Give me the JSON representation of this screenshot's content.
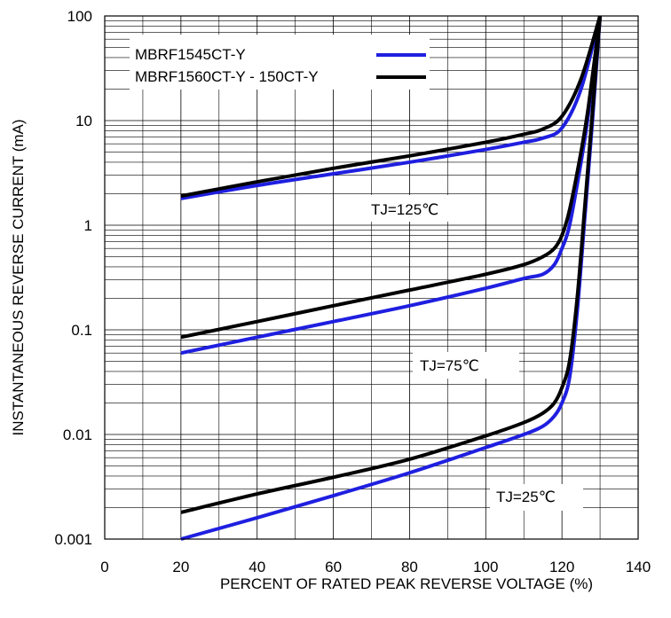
{
  "chart_data": {
    "type": "line",
    "title": "",
    "xlabel": "PERCENT OF RATED PEAK REVERSE VOLTAGE (%)",
    "ylabel": "INSTANTANEOUS REVERSE CURRENT (mA)",
    "xlim": [
      0,
      140
    ],
    "ylim": [
      0.001,
      100
    ],
    "yscale": "log",
    "grid": true,
    "x_ticks": [
      "0",
      "20",
      "40",
      "60",
      "80",
      "100",
      "120",
      "140"
    ],
    "y_ticks": [
      "0.001",
      "0.01",
      "0.1",
      "1",
      "10",
      "100"
    ],
    "legend_position": "top-left",
    "legend": [
      {
        "label": "MBRF1545CT-Y",
        "color": "#1f1fe0"
      },
      {
        "label": "MBRF1560CT-Y - 150CT-Y",
        "color": "#000000"
      }
    ],
    "annotations": [
      "TJ=125℃",
      "TJ=75℃",
      "TJ=25℃"
    ],
    "series": [
      {
        "group": "TJ=125℃",
        "color": "#1f1fe0",
        "x": [
          20,
          40,
          60,
          80,
          100,
          110,
          115,
          120,
          125,
          130
        ],
        "y": [
          1.8,
          2.4,
          3.1,
          4.0,
          5.3,
          6.2,
          6.8,
          8.5,
          20,
          100
        ]
      },
      {
        "group": "TJ=125℃",
        "color": "#000000",
        "x": [
          20,
          40,
          60,
          80,
          100,
          110,
          115,
          120,
          125,
          130
        ],
        "y": [
          1.9,
          2.6,
          3.5,
          4.6,
          6.2,
          7.4,
          8.3,
          11,
          25,
          100
        ]
      },
      {
        "group": "TJ=75℃",
        "color": "#1f1fe0",
        "x": [
          20,
          40,
          60,
          80,
          100,
          110,
          115,
          118,
          120,
          122,
          125,
          127,
          130
        ],
        "y": [
          0.06,
          0.085,
          0.12,
          0.17,
          0.25,
          0.31,
          0.34,
          0.42,
          0.6,
          1.0,
          4.0,
          12,
          100
        ]
      },
      {
        "group": "TJ=75℃",
        "color": "#000000",
        "x": [
          20,
          40,
          60,
          80,
          100,
          110,
          115,
          118,
          120,
          122,
          125,
          127,
          130
        ],
        "y": [
          0.085,
          0.12,
          0.17,
          0.24,
          0.34,
          0.42,
          0.5,
          0.6,
          0.8,
          1.4,
          5.0,
          14,
          100
        ]
      },
      {
        "group": "TJ=25℃",
        "color": "#1f1fe0",
        "x": [
          20,
          40,
          60,
          80,
          100,
          110,
          115,
          118,
          120,
          122,
          124,
          126,
          128,
          130
        ],
        "y": [
          0.001,
          0.0016,
          0.0026,
          0.0043,
          0.0075,
          0.01,
          0.012,
          0.015,
          0.02,
          0.035,
          0.15,
          1.2,
          10,
          100
        ]
      },
      {
        "group": "TJ=25℃",
        "color": "#000000",
        "x": [
          20,
          40,
          60,
          80,
          100,
          110,
          115,
          118,
          120,
          122,
          124,
          126,
          128,
          130
        ],
        "y": [
          0.0018,
          0.0027,
          0.0039,
          0.0058,
          0.0097,
          0.013,
          0.016,
          0.02,
          0.028,
          0.05,
          0.2,
          1.5,
          12,
          100
        ]
      }
    ]
  }
}
